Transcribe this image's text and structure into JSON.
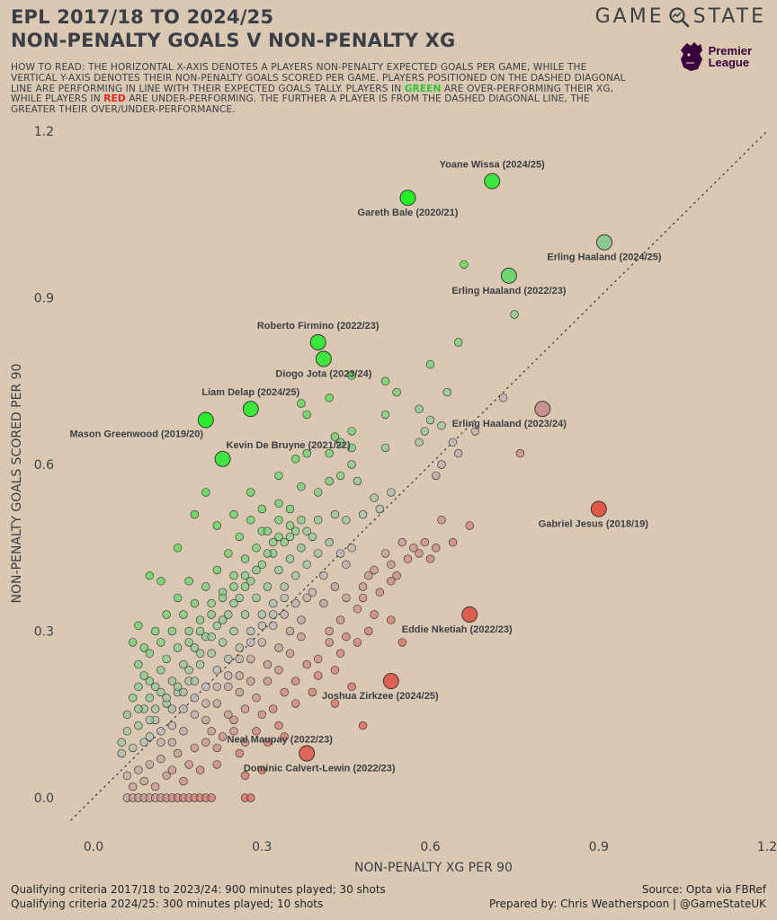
{
  "header": {
    "title_line1": "EPL 2017/18 TO 2024/25",
    "title_line2": "NON-PENALTY GOALS V NON-PENALTY XG",
    "brand_left": "GAME",
    "brand_right": "STATE",
    "league_line1": "Premier",
    "league_line2": "League"
  },
  "how_to_read": {
    "part1": "How to read: The horizontal x-axis denotes a players non-penalty expected goals per game, while the vertical y-axis denotes their non-penalty goals scored per game. Players positioned on the dashed diagonal line are performing in line with their expected goals tally. Players in ",
    "green_word": "green",
    "part2": " are over-performing their xG, while players in ",
    "red_word": "red",
    "part3": " are under-performing. The further a player is from the dashed diagonal line, the greater their over/under-performance."
  },
  "footer": {
    "criteria1": "Qualifying criteria 2017/18 to 2023/24: 900 minutes played; 30 shots",
    "criteria2": "Qualifying criteria 2024/25: 300 minutes played; 10 shots",
    "source": "Source: Opta via FBRef",
    "prepared": "Prepared by: Chris Weatherspoon | @GameStateUK"
  },
  "colors": {
    "background": "#dac8b2",
    "over": "#1ef01e",
    "under": "#ee3a22",
    "neutral": "#b9b9bf",
    "text": "#3a3f47"
  },
  "chart_data": {
    "type": "scatter",
    "xlabel": "NON-PENALTY XG PER 90",
    "ylabel": "NON-PENALTY GOALS SCORED PER 90",
    "xlim": [
      -0.05,
      1.2
    ],
    "ylim": [
      -0.06,
      1.2
    ],
    "xticks": [
      "0.0",
      "0.3",
      "0.6",
      "0.9",
      "1.2"
    ],
    "yticks": [
      "0.0",
      "0.3",
      "0.6",
      "0.9",
      "1.2"
    ],
    "reference_line": "y = x (dotted diagonal)",
    "color_encoding": "green = over-performing xG, red = under-performing, grey = in line",
    "highlighted": [
      {
        "label": "Yoane Wissa (2024/25)",
        "x": 0.71,
        "y": 1.11
      },
      {
        "label": "Gareth Bale (2020/21)",
        "x": 0.56,
        "y": 1.08
      },
      {
        "label": "Erling Haaland (2024/25)",
        "x": 0.91,
        "y": 1.0
      },
      {
        "label": "Erling Haaland (2022/23)",
        "x": 0.74,
        "y": 0.94
      },
      {
        "label": "Roberto Firmino (2022/23)",
        "x": 0.4,
        "y": 0.82
      },
      {
        "label": "Diogo Jota (2023/24)",
        "x": 0.41,
        "y": 0.79
      },
      {
        "label": "Liam Delap (2024/25)",
        "x": 0.28,
        "y": 0.7
      },
      {
        "label": "Mason Greenwood (2019/20)",
        "x": 0.2,
        "y": 0.68
      },
      {
        "label": "Kevin De Bruyne (2021/22)",
        "x": 0.23,
        "y": 0.61
      },
      {
        "label": "Erling Haaland (2023/24)",
        "x": 0.8,
        "y": 0.7
      },
      {
        "label": "Gabriel Jesus (2018/19)",
        "x": 0.9,
        "y": 0.52
      },
      {
        "label": "Eddie Nketiah (2022/23)",
        "x": 0.67,
        "y": 0.33
      },
      {
        "label": "Joshua Zirkzee (2024/25)",
        "x": 0.53,
        "y": 0.21
      },
      {
        "label": "Neal Maupay (2022/23)",
        "x": 0.38,
        "y": 0.08
      },
      {
        "label": "Dominic Calvert-Lewin (2022/23)",
        "x": 0.38,
        "y": 0.08
      }
    ],
    "others": [
      [
        0.66,
        0.96
      ],
      [
        0.75,
        0.87
      ],
      [
        0.65,
        0.82
      ],
      [
        0.6,
        0.78
      ],
      [
        0.46,
        0.76
      ],
      [
        0.52,
        0.75
      ],
      [
        0.54,
        0.73
      ],
      [
        0.42,
        0.72
      ],
      [
        0.37,
        0.71
      ],
      [
        0.63,
        0.73
      ],
      [
        0.73,
        0.72
      ],
      [
        0.38,
        0.69
      ],
      [
        0.52,
        0.69
      ],
      [
        0.58,
        0.7
      ],
      [
        0.6,
        0.68
      ],
      [
        0.46,
        0.66
      ],
      [
        0.43,
        0.65
      ],
      [
        0.44,
        0.64
      ],
      [
        0.46,
        0.63
      ],
      [
        0.52,
        0.63
      ],
      [
        0.59,
        0.66
      ],
      [
        0.62,
        0.67
      ],
      [
        0.58,
        0.64
      ],
      [
        0.64,
        0.64
      ],
      [
        0.65,
        0.62
      ],
      [
        0.62,
        0.6
      ],
      [
        0.61,
        0.58
      ],
      [
        0.76,
        0.62
      ],
      [
        0.68,
        0.66
      ],
      [
        0.12,
        0.39
      ],
      [
        0.2,
        0.55
      ],
      [
        0.18,
        0.51
      ],
      [
        0.22,
        0.49
      ],
      [
        0.15,
        0.45
      ],
      [
        0.1,
        0.4
      ],
      [
        0.08,
        0.31
      ],
      [
        0.07,
        0.28
      ],
      [
        0.25,
        0.51
      ],
      [
        0.28,
        0.55
      ],
      [
        0.33,
        0.58
      ],
      [
        0.37,
        0.56
      ],
      [
        0.4,
        0.55
      ],
      [
        0.42,
        0.57
      ],
      [
        0.44,
        0.58
      ],
      [
        0.47,
        0.57
      ],
      [
        0.5,
        0.54
      ],
      [
        0.51,
        0.52
      ],
      [
        0.53,
        0.55
      ],
      [
        0.3,
        0.48
      ],
      [
        0.32,
        0.46
      ],
      [
        0.35,
        0.47
      ],
      [
        0.38,
        0.48
      ],
      [
        0.4,
        0.5
      ],
      [
        0.43,
        0.51
      ],
      [
        0.45,
        0.5
      ],
      [
        0.48,
        0.51
      ],
      [
        0.36,
        0.61
      ],
      [
        0.38,
        0.62
      ],
      [
        0.42,
        0.62
      ],
      [
        0.46,
        0.6
      ],
      [
        0.33,
        0.53
      ],
      [
        0.55,
        0.46
      ],
      [
        0.57,
        0.45
      ],
      [
        0.59,
        0.46
      ],
      [
        0.61,
        0.45
      ],
      [
        0.58,
        0.44
      ],
      [
        0.56,
        0.43
      ],
      [
        0.53,
        0.42
      ],
      [
        0.52,
        0.44
      ],
      [
        0.5,
        0.41
      ],
      [
        0.54,
        0.4
      ],
      [
        0.6,
        0.43
      ],
      [
        0.64,
        0.46
      ],
      [
        0.67,
        0.49
      ],
      [
        0.62,
        0.5
      ],
      [
        0.53,
        0.39
      ],
      [
        0.49,
        0.4
      ],
      [
        0.48,
        0.38
      ],
      [
        0.51,
        0.37
      ],
      [
        0.45,
        0.36
      ],
      [
        0.47,
        0.34
      ],
      [
        0.44,
        0.32
      ],
      [
        0.48,
        0.36
      ],
      [
        0.5,
        0.33
      ],
      [
        0.53,
        0.32
      ],
      [
        0.49,
        0.3
      ],
      [
        0.45,
        0.29
      ],
      [
        0.47,
        0.28
      ],
      [
        0.44,
        0.26
      ],
      [
        0.42,
        0.28
      ],
      [
        0.4,
        0.25
      ],
      [
        0.43,
        0.23
      ],
      [
        0.38,
        0.24
      ],
      [
        0.4,
        0.22
      ],
      [
        0.36,
        0.21
      ],
      [
        0.39,
        0.19
      ],
      [
        0.34,
        0.19
      ],
      [
        0.36,
        0.17
      ],
      [
        0.32,
        0.16
      ],
      [
        0.3,
        0.15
      ],
      [
        0.33,
        0.13
      ],
      [
        0.29,
        0.12
      ],
      [
        0.31,
        0.1
      ],
      [
        0.27,
        0.1
      ],
      [
        0.25,
        0.12
      ],
      [
        0.26,
        0.08
      ],
      [
        0.22,
        0.09
      ],
      [
        0.22,
        0.06
      ],
      [
        0.19,
        0.05
      ],
      [
        0.17,
        0.06
      ],
      [
        0.2,
        0.1
      ],
      [
        0.24,
        0.15
      ],
      [
        0.26,
        0.19
      ],
      [
        0.28,
        0.21
      ],
      [
        0.31,
        0.24
      ],
      [
        0.33,
        0.27
      ],
      [
        0.35,
        0.3
      ],
      [
        0.37,
        0.29
      ],
      [
        0.42,
        0.3
      ],
      [
        0.55,
        0.28
      ],
      [
        0.46,
        0.2
      ],
      [
        0.43,
        0.17
      ],
      [
        0.48,
        0.13
      ],
      [
        0.34,
        0.11
      ],
      [
        0.3,
        0.05
      ],
      [
        0.27,
        0.04
      ],
      [
        0.06,
        0.0
      ],
      [
        0.07,
        0.0
      ],
      [
        0.08,
        0.0
      ],
      [
        0.09,
        0.0
      ],
      [
        0.1,
        0.0
      ],
      [
        0.11,
        0.0
      ],
      [
        0.12,
        0.0
      ],
      [
        0.13,
        0.0
      ],
      [
        0.14,
        0.0
      ],
      [
        0.15,
        0.0
      ],
      [
        0.16,
        0.0
      ],
      [
        0.17,
        0.0
      ],
      [
        0.18,
        0.0
      ],
      [
        0.19,
        0.0
      ],
      [
        0.2,
        0.0
      ],
      [
        0.21,
        0.0
      ],
      [
        0.27,
        0.0
      ],
      [
        0.28,
        0.0
      ],
      [
        0.07,
        0.02
      ],
      [
        0.09,
        0.03
      ],
      [
        0.11,
        0.02
      ],
      [
        0.13,
        0.04
      ],
      [
        0.08,
        0.05
      ],
      [
        0.1,
        0.06
      ],
      [
        0.12,
        0.07
      ],
      [
        0.14,
        0.05
      ],
      [
        0.16,
        0.03
      ],
      [
        0.06,
        0.04
      ],
      [
        0.15,
        0.08
      ],
      [
        0.05,
        0.08
      ],
      [
        0.05,
        0.1
      ],
      [
        0.06,
        0.12
      ],
      [
        0.07,
        0.09
      ],
      [
        0.06,
        0.15
      ],
      [
        0.07,
        0.18
      ],
      [
        0.08,
        0.13
      ],
      [
        0.09,
        0.16
      ],
      [
        0.08,
        0.2
      ],
      [
        0.09,
        0.22
      ],
      [
        0.1,
        0.18
      ],
      [
        0.11,
        0.14
      ],
      [
        0.1,
        0.11
      ],
      [
        0.12,
        0.1
      ],
      [
        0.11,
        0.2
      ],
      [
        0.12,
        0.23
      ],
      [
        0.13,
        0.17
      ],
      [
        0.14,
        0.13
      ],
      [
        0.13,
        0.25
      ],
      [
        0.14,
        0.21
      ],
      [
        0.15,
        0.19
      ],
      [
        0.16,
        0.16
      ],
      [
        0.15,
        0.27
      ],
      [
        0.16,
        0.24
      ],
      [
        0.17,
        0.21
      ],
      [
        0.18,
        0.18
      ],
      [
        0.17,
        0.3
      ],
      [
        0.18,
        0.27
      ],
      [
        0.19,
        0.24
      ],
      [
        0.2,
        0.2
      ],
      [
        0.19,
        0.32
      ],
      [
        0.2,
        0.29
      ],
      [
        0.21,
        0.26
      ],
      [
        0.22,
        0.23
      ],
      [
        0.21,
        0.35
      ],
      [
        0.22,
        0.31
      ],
      [
        0.23,
        0.28
      ],
      [
        0.24,
        0.25
      ],
      [
        0.23,
        0.37
      ],
      [
        0.24,
        0.33
      ],
      [
        0.25,
        0.3
      ],
      [
        0.26,
        0.27
      ],
      [
        0.25,
        0.4
      ],
      [
        0.26,
        0.36
      ],
      [
        0.27,
        0.33
      ],
      [
        0.28,
        0.3
      ],
      [
        0.27,
        0.43
      ],
      [
        0.28,
        0.39
      ],
      [
        0.29,
        0.36
      ],
      [
        0.3,
        0.33
      ],
      [
        0.29,
        0.45
      ],
      [
        0.3,
        0.42
      ],
      [
        0.31,
        0.38
      ],
      [
        0.32,
        0.35
      ],
      [
        0.31,
        0.48
      ],
      [
        0.32,
        0.44
      ],
      [
        0.33,
        0.41
      ],
      [
        0.34,
        0.38
      ],
      [
        0.33,
        0.5
      ],
      [
        0.34,
        0.46
      ],
      [
        0.35,
        0.43
      ],
      [
        0.36,
        0.4
      ],
      [
        0.35,
        0.52
      ],
      [
        0.36,
        0.48
      ],
      [
        0.37,
        0.45
      ],
      [
        0.38,
        0.42
      ],
      [
        0.37,
        0.5
      ],
      [
        0.39,
        0.47
      ],
      [
        0.4,
        0.44
      ],
      [
        0.41,
        0.4
      ],
      [
        0.39,
        0.37
      ],
      [
        0.41,
        0.35
      ],
      [
        0.43,
        0.38
      ],
      [
        0.44,
        0.44
      ],
      [
        0.42,
        0.46
      ],
      [
        0.45,
        0.42
      ],
      [
        0.46,
        0.45
      ],
      [
        0.1,
        0.26
      ],
      [
        0.12,
        0.28
      ],
      [
        0.14,
        0.3
      ],
      [
        0.16,
        0.33
      ],
      [
        0.18,
        0.35
      ],
      [
        0.2,
        0.38
      ],
      [
        0.22,
        0.41
      ],
      [
        0.24,
        0.44
      ],
      [
        0.26,
        0.47
      ],
      [
        0.28,
        0.5
      ],
      [
        0.3,
        0.52
      ],
      [
        0.29,
        0.41
      ],
      [
        0.27,
        0.38
      ],
      [
        0.25,
        0.35
      ],
      [
        0.23,
        0.32
      ],
      [
        0.21,
        0.29
      ],
      [
        0.19,
        0.26
      ],
      [
        0.17,
        0.23
      ],
      [
        0.15,
        0.2
      ],
      [
        0.13,
        0.18
      ],
      [
        0.11,
        0.16
      ],
      [
        0.09,
        0.1
      ],
      [
        0.18,
        0.15
      ],
      [
        0.2,
        0.14
      ],
      [
        0.22,
        0.17
      ],
      [
        0.24,
        0.2
      ],
      [
        0.26,
        0.22
      ],
      [
        0.28,
        0.25
      ],
      [
        0.3,
        0.28
      ],
      [
        0.32,
        0.31
      ],
      [
        0.34,
        0.33
      ],
      [
        0.36,
        0.35
      ],
      [
        0.38,
        0.36
      ],
      [
        0.21,
        0.12
      ],
      [
        0.23,
        0.11
      ],
      [
        0.25,
        0.14
      ],
      [
        0.27,
        0.16
      ],
      [
        0.29,
        0.18
      ],
      [
        0.31,
        0.21
      ],
      [
        0.33,
        0.23
      ],
      [
        0.35,
        0.26
      ],
      [
        0.37,
        0.32
      ],
      [
        0.16,
        0.12
      ],
      [
        0.18,
        0.09
      ],
      [
        0.14,
        0.1
      ],
      [
        0.12,
        0.12
      ],
      [
        0.1,
        0.14
      ],
      [
        0.08,
        0.16
      ],
      [
        0.17,
        0.28
      ],
      [
        0.19,
        0.3
      ],
      [
        0.21,
        0.33
      ],
      [
        0.23,
        0.36
      ],
      [
        0.25,
        0.38
      ],
      [
        0.27,
        0.4
      ],
      [
        0.31,
        0.44
      ],
      [
        0.33,
        0.47
      ],
      [
        0.35,
        0.49
      ],
      [
        0.24,
        0.22
      ],
      [
        0.26,
        0.25
      ],
      [
        0.28,
        0.28
      ],
      [
        0.3,
        0.31
      ],
      [
        0.32,
        0.33
      ],
      [
        0.34,
        0.36
      ],
      [
        0.2,
        0.17
      ],
      [
        0.22,
        0.2
      ],
      [
        0.18,
        0.21
      ],
      [
        0.16,
        0.19
      ],
      [
        0.14,
        0.16
      ],
      [
        0.12,
        0.19
      ],
      [
        0.1,
        0.21
      ],
      [
        0.08,
        0.24
      ],
      [
        0.09,
        0.27
      ],
      [
        0.11,
        0.3
      ],
      [
        0.13,
        0.33
      ],
      [
        0.15,
        0.36
      ],
      [
        0.17,
        0.39
      ]
    ]
  }
}
